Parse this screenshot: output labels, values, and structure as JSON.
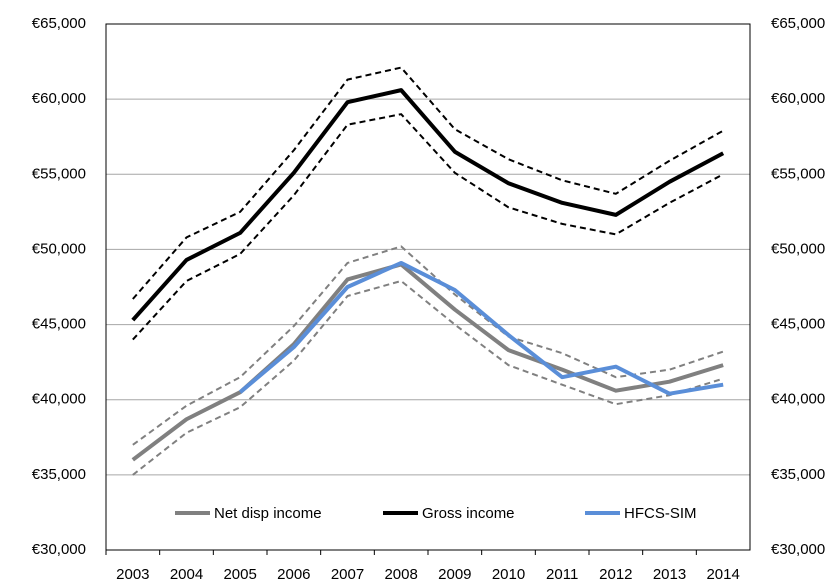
{
  "chart_data": {
    "type": "line",
    "categories": [
      "2003",
      "2004",
      "2005",
      "2006",
      "2007",
      "2008",
      "2009",
      "2010",
      "2011",
      "2012",
      "2013",
      "2014"
    ],
    "series": [
      {
        "color": "#000000",
        "dashed": true,
        "values": [
          46700,
          50800,
          52500,
          56600,
          61300,
          62100,
          58000,
          56000,
          54600,
          53700,
          55900,
          57900
        ]
      },
      {
        "color": "#000000",
        "dashed": true,
        "values": [
          44000,
          47900,
          49700,
          53600,
          58300,
          59000,
          55100,
          52800,
          51700,
          51000,
          53100,
          55000
        ]
      },
      {
        "color": "#808080",
        "dashed": true,
        "values": [
          37000,
          39600,
          41500,
          44900,
          49100,
          50200,
          47000,
          44200,
          43100,
          41500,
          42000,
          43200
        ]
      },
      {
        "color": "#808080",
        "dashed": true,
        "values": [
          35000,
          37800,
          39500,
          42600,
          46900,
          47900,
          45000,
          42300,
          41000,
          39700,
          40300,
          41400
        ]
      },
      {
        "name": "Net disp income",
        "color": "#808080",
        "values": [
          36000,
          38700,
          40500,
          43700,
          48000,
          49000,
          46000,
          43300,
          42000,
          40600,
          41200,
          42300
        ]
      },
      {
        "name": "Gross income",
        "color": "#000000",
        "values": [
          45300,
          49300,
          51100,
          55100,
          59800,
          60600,
          56500,
          54400,
          53100,
          52300,
          54500,
          56400
        ]
      },
      {
        "name": "HFCS-SIM",
        "color": "#5a8ed8",
        "values": [
          null,
          null,
          40500,
          43500,
          47500,
          49100,
          47300,
          44300,
          41500,
          42200,
          40400,
          41000
        ]
      }
    ],
    "ylim": [
      30000,
      65000
    ],
    "yticks": [
      {
        "value": 30000,
        "label": "€30,000"
      },
      {
        "value": 35000,
        "label": "€35,000"
      },
      {
        "value": 40000,
        "label": "€40,000"
      },
      {
        "value": 45000,
        "label": "€45,000"
      },
      {
        "value": 50000,
        "label": "€50,000"
      },
      {
        "value": 55000,
        "label": "€55,000"
      },
      {
        "value": 60000,
        "label": "€60,000"
      },
      {
        "value": 65000,
        "label": "€65,000"
      }
    ],
    "y2lim": [
      30000,
      65000
    ],
    "y2ticks": [
      {
        "value": 30000,
        "label": "€30,000"
      },
      {
        "value": 35000,
        "label": "€35,000"
      },
      {
        "value": 40000,
        "label": "€40,000"
      },
      {
        "value": 45000,
        "label": "€45,000"
      },
      {
        "value": 50000,
        "label": "€50,000"
      },
      {
        "value": 55000,
        "label": "€55,000"
      },
      {
        "value": 60000,
        "label": "€60,000"
      },
      {
        "value": 65000,
        "label": "€65,000"
      }
    ],
    "grid": true,
    "legend": "bottom"
  }
}
